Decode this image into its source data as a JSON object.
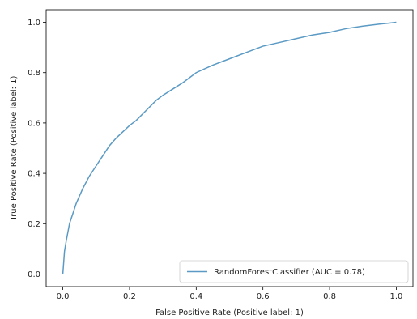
{
  "chart_data": {
    "type": "line",
    "xlabel": "False Positive Rate (Positive label: 1)",
    "ylabel": "True Positive Rate (Positive label: 1)",
    "xlim": [
      -0.05,
      1.05
    ],
    "ylim": [
      -0.05,
      1.05
    ],
    "xticks": [
      "0.0",
      "0.2",
      "0.4",
      "0.6",
      "0.8",
      "1.0"
    ],
    "yticks": [
      "0.0",
      "0.2",
      "0.4",
      "0.6",
      "0.8",
      "1.0"
    ],
    "grid": false,
    "legend": {
      "placement": "bottom-right"
    },
    "colors": {
      "line": "#5b9ac4"
    },
    "series": [
      {
        "name": "RandomForestClassifier (AUC = 0.78)",
        "x": [
          0.0,
          0.005,
          0.01,
          0.02,
          0.03,
          0.04,
          0.05,
          0.06,
          0.08,
          0.1,
          0.12,
          0.14,
          0.16,
          0.18,
          0.2,
          0.22,
          0.25,
          0.28,
          0.3,
          0.33,
          0.36,
          0.4,
          0.45,
          0.5,
          0.55,
          0.6,
          0.65,
          0.7,
          0.75,
          0.8,
          0.85,
          0.9,
          0.95,
          0.98,
          1.0
        ],
        "y": [
          0.0,
          0.09,
          0.13,
          0.2,
          0.24,
          0.28,
          0.31,
          0.34,
          0.39,
          0.43,
          0.47,
          0.51,
          0.54,
          0.565,
          0.59,
          0.61,
          0.65,
          0.69,
          0.71,
          0.735,
          0.76,
          0.8,
          0.83,
          0.855,
          0.88,
          0.905,
          0.92,
          0.935,
          0.95,
          0.96,
          0.975,
          0.985,
          0.993,
          0.997,
          1.0
        ]
      }
    ]
  }
}
